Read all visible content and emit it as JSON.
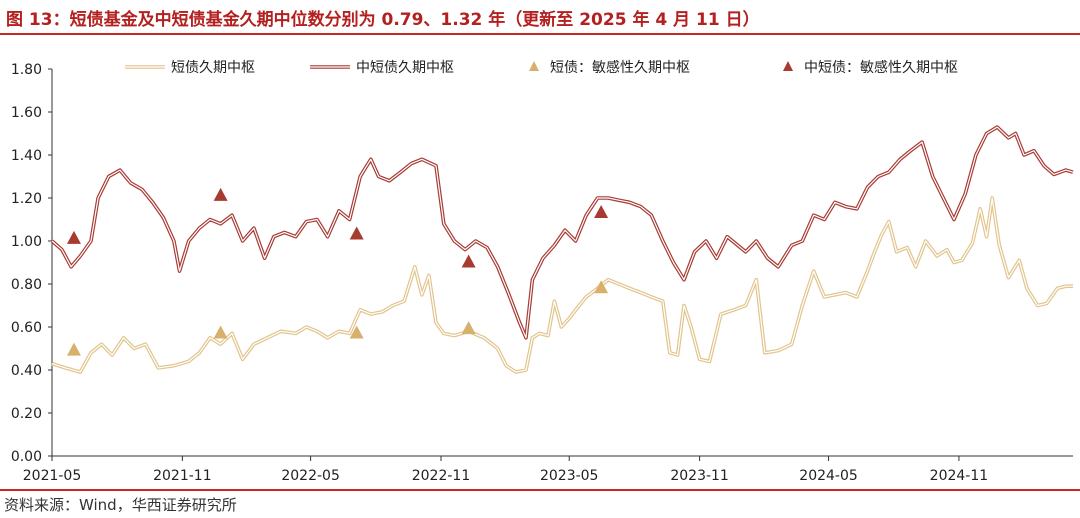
{
  "header": {
    "title": "图 13：短债基金及中短债基金久期中位数分别为 0.79、1.32 年（更新至 2025 年 4 月 11 日）"
  },
  "footer": {
    "source": "资料来源：Wind，华西证券研究所"
  },
  "colors": {
    "accent": "#c62a26",
    "short_line": "#e2c48d",
    "mid_short_line": "#a83b34",
    "short_marker": "#d7b16b",
    "mid_short_marker": "#a83b2f"
  },
  "chart_data": {
    "type": "line",
    "title": "",
    "xlabel": "",
    "ylabel": "",
    "ylim": [
      0,
      1.8
    ],
    "y_ticks": [
      "0.00",
      "0.20",
      "0.40",
      "0.60",
      "0.80",
      "1.00",
      "1.20",
      "1.40",
      "1.60",
      "1.80"
    ],
    "x_range": [
      "2021-05-01",
      "2025-04-11"
    ],
    "x_ticks": [
      "2021-05",
      "2021-11",
      "2022-05",
      "2022-11",
      "2023-05",
      "2023-11",
      "2024-05",
      "2024-11"
    ],
    "grid": false,
    "legend_position": "top",
    "series": [
      {
        "name": "短债久期中枢",
        "style": "double-line",
        "points": [
          [
            "2021-05-01",
            0.43
          ],
          [
            "2021-05-20",
            0.41
          ],
          [
            "2021-06-10",
            0.39
          ],
          [
            "2021-06-25",
            0.48
          ],
          [
            "2021-07-10",
            0.52
          ],
          [
            "2021-07-25",
            0.47
          ],
          [
            "2021-08-10",
            0.55
          ],
          [
            "2021-08-25",
            0.5
          ],
          [
            "2021-09-10",
            0.52
          ],
          [
            "2021-09-28",
            0.41
          ],
          [
            "2021-10-20",
            0.42
          ],
          [
            "2021-11-10",
            0.44
          ],
          [
            "2021-11-25",
            0.48
          ],
          [
            "2021-12-10",
            0.55
          ],
          [
            "2021-12-25",
            0.52
          ],
          [
            "2022-01-10",
            0.57
          ],
          [
            "2022-01-25",
            0.45
          ],
          [
            "2022-02-10",
            0.52
          ],
          [
            "2022-03-01",
            0.55
          ],
          [
            "2022-03-20",
            0.58
          ],
          [
            "2022-04-10",
            0.57
          ],
          [
            "2022-04-25",
            0.6
          ],
          [
            "2022-05-10",
            0.58
          ],
          [
            "2022-05-25",
            0.55
          ],
          [
            "2022-06-10",
            0.58
          ],
          [
            "2022-06-25",
            0.57
          ],
          [
            "2022-07-10",
            0.68
          ],
          [
            "2022-07-25",
            0.66
          ],
          [
            "2022-08-10",
            0.67
          ],
          [
            "2022-08-25",
            0.7
          ],
          [
            "2022-09-10",
            0.72
          ],
          [
            "2022-09-25",
            0.88
          ],
          [
            "2022-10-05",
            0.75
          ],
          [
            "2022-10-15",
            0.84
          ],
          [
            "2022-10-25",
            0.62
          ],
          [
            "2022-11-05",
            0.57
          ],
          [
            "2022-11-20",
            0.56
          ],
          [
            "2022-12-10",
            0.58
          ],
          [
            "2023-01-01",
            0.55
          ],
          [
            "2023-01-20",
            0.5
          ],
          [
            "2023-02-01",
            0.42
          ],
          [
            "2023-02-15",
            0.39
          ],
          [
            "2023-03-01",
            0.4
          ],
          [
            "2023-03-10",
            0.55
          ],
          [
            "2023-03-20",
            0.57
          ],
          [
            "2023-04-01",
            0.56
          ],
          [
            "2023-04-10",
            0.72
          ],
          [
            "2023-04-20",
            0.6
          ],
          [
            "2023-05-01",
            0.64
          ],
          [
            "2023-05-15",
            0.7
          ],
          [
            "2023-05-25",
            0.74
          ],
          [
            "2023-06-10",
            0.78
          ],
          [
            "2023-06-25",
            0.82
          ],
          [
            "2023-07-10",
            0.8
          ],
          [
            "2023-07-25",
            0.78
          ],
          [
            "2023-08-10",
            0.76
          ],
          [
            "2023-08-25",
            0.74
          ],
          [
            "2023-09-10",
            0.72
          ],
          [
            "2023-09-20",
            0.48
          ],
          [
            "2023-10-01",
            0.47
          ],
          [
            "2023-10-10",
            0.7
          ],
          [
            "2023-10-20",
            0.6
          ],
          [
            "2023-11-01",
            0.45
          ],
          [
            "2023-11-15",
            0.44
          ],
          [
            "2023-12-01",
            0.66
          ],
          [
            "2023-12-20",
            0.68
          ],
          [
            "2024-01-05",
            0.7
          ],
          [
            "2024-01-20",
            0.82
          ],
          [
            "2024-02-01",
            0.48
          ],
          [
            "2024-02-20",
            0.49
          ],
          [
            "2024-03-10",
            0.52
          ],
          [
            "2024-03-25",
            0.7
          ],
          [
            "2024-04-10",
            0.86
          ],
          [
            "2024-04-25",
            0.74
          ],
          [
            "2024-05-10",
            0.75
          ],
          [
            "2024-05-25",
            0.76
          ],
          [
            "2024-06-10",
            0.74
          ],
          [
            "2024-06-25",
            0.86
          ],
          [
            "2024-07-05",
            0.95
          ],
          [
            "2024-07-15",
            1.03
          ],
          [
            "2024-07-25",
            1.09
          ],
          [
            "2024-08-05",
            0.95
          ],
          [
            "2024-08-20",
            0.97
          ],
          [
            "2024-09-01",
            0.88
          ],
          [
            "2024-09-15",
            1.0
          ],
          [
            "2024-10-01",
            0.93
          ],
          [
            "2024-10-15",
            0.96
          ],
          [
            "2024-10-25",
            0.9
          ],
          [
            "2024-11-05",
            0.91
          ],
          [
            "2024-11-20",
            0.99
          ],
          [
            "2024-12-01",
            1.15
          ],
          [
            "2024-12-10",
            1.02
          ],
          [
            "2024-12-18",
            1.2
          ],
          [
            "2024-12-28",
            0.98
          ],
          [
            "2025-01-10",
            0.83
          ],
          [
            "2025-01-25",
            0.91
          ],
          [
            "2025-02-05",
            0.78
          ],
          [
            "2025-02-20",
            0.7
          ],
          [
            "2025-03-05",
            0.71
          ],
          [
            "2025-03-20",
            0.78
          ],
          [
            "2025-04-01",
            0.79
          ],
          [
            "2025-04-11",
            0.79
          ]
        ]
      },
      {
        "name": "中短债久期中枢",
        "style": "double-line",
        "points": [
          [
            "2021-05-01",
            1.0
          ],
          [
            "2021-05-15",
            0.96
          ],
          [
            "2021-05-28",
            0.88
          ],
          [
            "2021-06-10",
            0.93
          ],
          [
            "2021-06-25",
            1.0
          ],
          [
            "2021-07-05",
            1.2
          ],
          [
            "2021-07-20",
            1.3
          ],
          [
            "2021-08-05",
            1.33
          ],
          [
            "2021-08-20",
            1.27
          ],
          [
            "2021-09-05",
            1.24
          ],
          [
            "2021-09-20",
            1.18
          ],
          [
            "2021-10-05",
            1.11
          ],
          [
            "2021-10-20",
            1.0
          ],
          [
            "2021-10-28",
            0.86
          ],
          [
            "2021-11-10",
            1.0
          ],
          [
            "2021-11-25",
            1.06
          ],
          [
            "2021-12-10",
            1.1
          ],
          [
            "2021-12-25",
            1.08
          ],
          [
            "2022-01-10",
            1.12
          ],
          [
            "2022-01-25",
            1.0
          ],
          [
            "2022-02-10",
            1.06
          ],
          [
            "2022-02-25",
            0.92
          ],
          [
            "2022-03-10",
            1.02
          ],
          [
            "2022-03-25",
            1.04
          ],
          [
            "2022-04-10",
            1.02
          ],
          [
            "2022-04-25",
            1.09
          ],
          [
            "2022-05-10",
            1.1
          ],
          [
            "2022-05-25",
            1.02
          ],
          [
            "2022-06-10",
            1.14
          ],
          [
            "2022-06-25",
            1.1
          ],
          [
            "2022-07-10",
            1.3
          ],
          [
            "2022-07-25",
            1.38
          ],
          [
            "2022-08-05",
            1.3
          ],
          [
            "2022-08-20",
            1.28
          ],
          [
            "2022-09-05",
            1.32
          ],
          [
            "2022-09-20",
            1.36
          ],
          [
            "2022-10-05",
            1.38
          ],
          [
            "2022-10-25",
            1.35
          ],
          [
            "2022-11-05",
            1.08
          ],
          [
            "2022-11-20",
            1.0
          ],
          [
            "2022-12-05",
            0.96
          ],
          [
            "2022-12-20",
            1.0
          ],
          [
            "2023-01-05",
            0.97
          ],
          [
            "2023-01-20",
            0.88
          ],
          [
            "2023-02-05",
            0.75
          ],
          [
            "2023-02-20",
            0.62
          ],
          [
            "2023-03-01",
            0.55
          ],
          [
            "2023-03-10",
            0.82
          ],
          [
            "2023-03-25",
            0.92
          ],
          [
            "2023-04-10",
            0.98
          ],
          [
            "2023-04-25",
            1.05
          ],
          [
            "2023-05-10",
            1.0
          ],
          [
            "2023-05-25",
            1.12
          ],
          [
            "2023-06-10",
            1.2
          ],
          [
            "2023-06-25",
            1.2
          ],
          [
            "2023-07-10",
            1.19
          ],
          [
            "2023-07-25",
            1.18
          ],
          [
            "2023-08-10",
            1.16
          ],
          [
            "2023-08-25",
            1.12
          ],
          [
            "2023-09-10",
            1.0
          ],
          [
            "2023-09-25",
            0.9
          ],
          [
            "2023-10-10",
            0.82
          ],
          [
            "2023-10-25",
            0.95
          ],
          [
            "2023-11-10",
            1.0
          ],
          [
            "2023-11-25",
            0.92
          ],
          [
            "2023-12-10",
            1.02
          ],
          [
            "2024-01-05",
            0.95
          ],
          [
            "2024-01-20",
            1.0
          ],
          [
            "2024-02-05",
            0.92
          ],
          [
            "2024-02-20",
            0.88
          ],
          [
            "2024-03-10",
            0.98
          ],
          [
            "2024-03-25",
            1.0
          ],
          [
            "2024-04-10",
            1.12
          ],
          [
            "2024-04-25",
            1.1
          ],
          [
            "2024-05-10",
            1.18
          ],
          [
            "2024-05-25",
            1.16
          ],
          [
            "2024-06-10",
            1.15
          ],
          [
            "2024-06-25",
            1.25
          ],
          [
            "2024-07-10",
            1.3
          ],
          [
            "2024-07-25",
            1.32
          ],
          [
            "2024-08-10",
            1.38
          ],
          [
            "2024-08-25",
            1.42
          ],
          [
            "2024-09-10",
            1.46
          ],
          [
            "2024-09-25",
            1.3
          ],
          [
            "2024-10-10",
            1.2
          ],
          [
            "2024-10-25",
            1.1
          ],
          [
            "2024-11-10",
            1.22
          ],
          [
            "2024-11-25",
            1.4
          ],
          [
            "2024-12-10",
            1.5
          ],
          [
            "2024-12-25",
            1.53
          ],
          [
            "2025-01-10",
            1.48
          ],
          [
            "2025-01-20",
            1.5
          ],
          [
            "2025-02-01",
            1.4
          ],
          [
            "2025-02-15",
            1.42
          ],
          [
            "2025-03-01",
            1.35
          ],
          [
            "2025-03-15",
            1.31
          ],
          [
            "2025-04-01",
            1.33
          ],
          [
            "2025-04-11",
            1.32
          ]
        ]
      },
      {
        "name": "短债：敏感性久期中枢",
        "style": "triangle-markers",
        "points": [
          [
            "2021-06-01",
            0.49
          ],
          [
            "2021-12-25",
            0.57
          ],
          [
            "2022-07-05",
            0.57
          ],
          [
            "2022-12-10",
            0.59
          ],
          [
            "2023-06-15",
            0.78
          ]
        ]
      },
      {
        "name": "中短债：敏感性久期中枢",
        "style": "triangle-markers",
        "points": [
          [
            "2021-06-01",
            1.01
          ],
          [
            "2021-12-25",
            1.21
          ],
          [
            "2022-07-05",
            1.03
          ],
          [
            "2022-12-10",
            0.9
          ],
          [
            "2023-06-15",
            1.13
          ]
        ]
      }
    ]
  }
}
